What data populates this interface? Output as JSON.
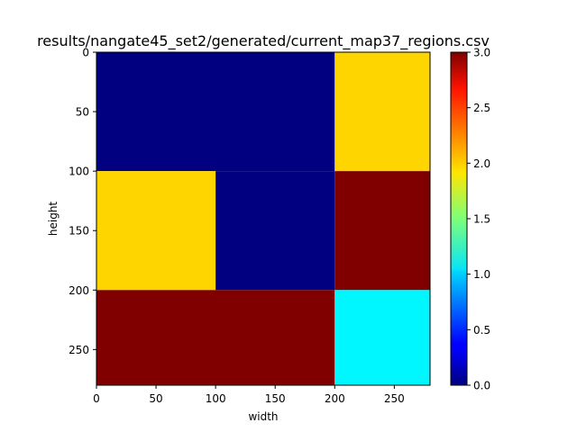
{
  "chart_data": {
    "type": "heatmap",
    "title": "results/nangate45_set2/generated/current_map37_regions.csv",
    "xlabel": "width",
    "ylabel": "height",
    "xlim": [
      0,
      280
    ],
    "ylim": [
      280,
      0
    ],
    "x_ticks": [
      0,
      50,
      100,
      150,
      200,
      250
    ],
    "y_ticks": [
      0,
      50,
      100,
      150,
      200,
      250
    ],
    "colormap": "jet",
    "vmin": 0.0,
    "vmax": 3.0,
    "colorbar_ticks": [
      "0.0",
      "0.5",
      "1.0",
      "1.5",
      "2.0",
      "2.5",
      "3.0"
    ],
    "regions": [
      {
        "x": [
          0,
          200
        ],
        "y": [
          0,
          100
        ],
        "value": 0.0
      },
      {
        "x": [
          200,
          280
        ],
        "y": [
          0,
          100
        ],
        "value": 2.0
      },
      {
        "x": [
          0,
          100
        ],
        "y": [
          100,
          200
        ],
        "value": 2.0
      },
      {
        "x": [
          100,
          200
        ],
        "y": [
          100,
          200
        ],
        "value": 0.0
      },
      {
        "x": [
          200,
          280
        ],
        "y": [
          100,
          200
        ],
        "value": 3.0
      },
      {
        "x": [
          0,
          200
        ],
        "y": [
          200,
          280
        ],
        "value": 3.0
      },
      {
        "x": [
          200,
          280
        ],
        "y": [
          200,
          280
        ],
        "value": 1.1
      }
    ],
    "grid": false,
    "legend": "colorbar-right"
  }
}
